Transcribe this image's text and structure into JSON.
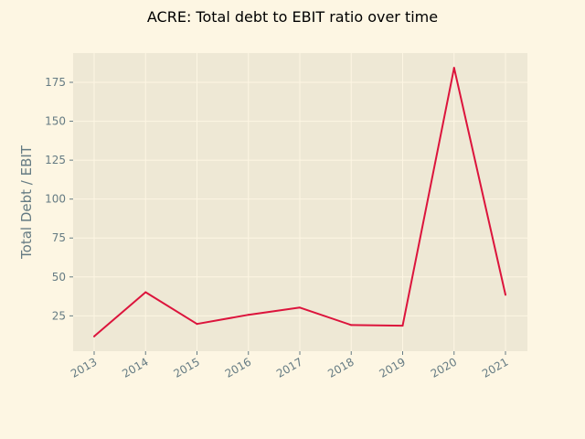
{
  "chart_data": {
    "type": "line",
    "title": "ACRE: Total debt to EBIT ratio over time",
    "xlabel": "",
    "ylabel": "Total Debt / EBIT",
    "x": [
      "2013",
      "2014",
      "2015",
      "2016",
      "2017",
      "2018",
      "2019",
      "2020",
      "2021"
    ],
    "series": [
      {
        "values": [
          11.8,
          40.2,
          19.8,
          25.7,
          30.3,
          19.1,
          18.7,
          184.3,
          38.5
        ]
      }
    ],
    "yticks": [
      25,
      50,
      75,
      100,
      125,
      150,
      175
    ],
    "ylim": [
      2.3,
      193.8
    ],
    "grid": true,
    "legend": "none"
  },
  "colors": {
    "background": "#fdf6e3",
    "plot_background": "#eee8d5",
    "line": "#dc143c",
    "text": "#657b83"
  }
}
